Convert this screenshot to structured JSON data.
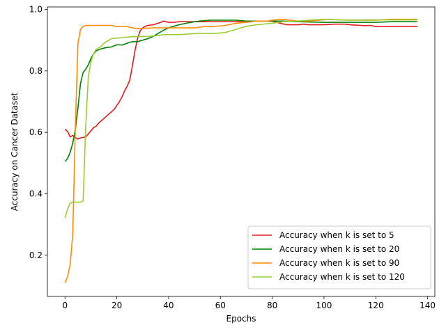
{
  "chart_data": {
    "type": "line",
    "title": "",
    "xlabel": "Epochs",
    "ylabel": "Accuracy on Cancer Dataset",
    "xlim": [
      -6.8,
      142.8
    ],
    "ylim": [
      0.066,
      1.008
    ],
    "xticks": [
      0,
      20,
      40,
      60,
      80,
      100,
      120,
      140
    ],
    "yticks": [
      0.2,
      0.4,
      0.6,
      0.8,
      1.0
    ],
    "xtick_labels": [
      "0",
      "20",
      "40",
      "60",
      "80",
      "100",
      "120",
      "140"
    ],
    "ytick_labels": [
      "0.2",
      "0.4",
      "0.6",
      "0.8",
      "1.0"
    ],
    "grid": false,
    "legend_position": "lower-right",
    "series": [
      {
        "name": "Accuracy when k is set to 5",
        "color": "#e41a1c",
        "points": [
          [
            0,
            0.61
          ],
          [
            1,
            0.603
          ],
          [
            2,
            0.585
          ],
          [
            3,
            0.59
          ],
          [
            4,
            0.583
          ],
          [
            5,
            0.578
          ],
          [
            6,
            0.582
          ],
          [
            8,
            0.585
          ],
          [
            9,
            0.595
          ],
          [
            10,
            0.605
          ],
          [
            11,
            0.615
          ],
          [
            12,
            0.62
          ],
          [
            13,
            0.63
          ],
          [
            15,
            0.645
          ],
          [
            17,
            0.66
          ],
          [
            19,
            0.675
          ],
          [
            21,
            0.7
          ],
          [
            22,
            0.715
          ],
          [
            23,
            0.735
          ],
          [
            24,
            0.75
          ],
          [
            25,
            0.77
          ],
          [
            26,
            0.815
          ],
          [
            27,
            0.865
          ],
          [
            28,
            0.905
          ],
          [
            29,
            0.93
          ],
          [
            30,
            0.94
          ],
          [
            31,
            0.945
          ],
          [
            32,
            0.948
          ],
          [
            34,
            0.95
          ],
          [
            36,
            0.955
          ],
          [
            37,
            0.958
          ],
          [
            38,
            0.962
          ],
          [
            40,
            0.958
          ],
          [
            42,
            0.958
          ],
          [
            44,
            0.96
          ],
          [
            50,
            0.96
          ],
          [
            60,
            0.96
          ],
          [
            66,
            0.96
          ],
          [
            70,
            0.962
          ],
          [
            76,
            0.962
          ],
          [
            80,
            0.962
          ],
          [
            84,
            0.953
          ],
          [
            86,
            0.95
          ],
          [
            90,
            0.95
          ],
          [
            92,
            0.952
          ],
          [
            94,
            0.95
          ],
          [
            100,
            0.95
          ],
          [
            104,
            0.952
          ],
          [
            108,
            0.952
          ],
          [
            110,
            0.95
          ],
          [
            114,
            0.948
          ],
          [
            116,
            0.947
          ],
          [
            118,
            0.948
          ],
          [
            120,
            0.944
          ],
          [
            130,
            0.944
          ],
          [
            136,
            0.944
          ]
        ]
      },
      {
        "name": "Accuracy when k is set to 20",
        "color": "#008000",
        "points": [
          [
            0,
            0.505
          ],
          [
            1,
            0.515
          ],
          [
            2,
            0.535
          ],
          [
            3,
            0.565
          ],
          [
            4,
            0.61
          ],
          [
            5,
            0.68
          ],
          [
            6,
            0.76
          ],
          [
            7,
            0.795
          ],
          [
            8,
            0.805
          ],
          [
            9,
            0.82
          ],
          [
            10,
            0.84
          ],
          [
            11,
            0.855
          ],
          [
            12,
            0.865
          ],
          [
            14,
            0.872
          ],
          [
            16,
            0.876
          ],
          [
            18,
            0.878
          ],
          [
            20,
            0.885
          ],
          [
            22,
            0.884
          ],
          [
            24,
            0.89
          ],
          [
            26,
            0.895
          ],
          [
            28,
            0.895
          ],
          [
            30,
            0.9
          ],
          [
            32,
            0.905
          ],
          [
            34,
            0.912
          ],
          [
            36,
            0.922
          ],
          [
            38,
            0.932
          ],
          [
            40,
            0.94
          ],
          [
            44,
            0.95
          ],
          [
            48,
            0.957
          ],
          [
            52,
            0.962
          ],
          [
            56,
            0.965
          ],
          [
            60,
            0.965
          ],
          [
            66,
            0.965
          ],
          [
            70,
            0.962
          ],
          [
            76,
            0.962
          ],
          [
            80,
            0.962
          ],
          [
            84,
            0.962
          ],
          [
            90,
            0.96
          ],
          [
            100,
            0.958
          ],
          [
            110,
            0.958
          ],
          [
            120,
            0.958
          ],
          [
            126,
            0.96
          ],
          [
            130,
            0.96
          ],
          [
            136,
            0.96
          ]
        ]
      },
      {
        "name": "Accuracy when k is set to 90",
        "color": "#ff8c00",
        "points": [
          [
            0,
            0.11
          ],
          [
            1,
            0.13
          ],
          [
            2,
            0.17
          ],
          [
            3,
            0.27
          ],
          [
            4,
            0.62
          ],
          [
            5,
            0.89
          ],
          [
            6,
            0.935
          ],
          [
            7,
            0.945
          ],
          [
            8,
            0.948
          ],
          [
            10,
            0.948
          ],
          [
            14,
            0.948
          ],
          [
            18,
            0.948
          ],
          [
            20,
            0.944
          ],
          [
            24,
            0.944
          ],
          [
            26,
            0.94
          ],
          [
            28,
            0.938
          ],
          [
            30,
            0.938
          ],
          [
            34,
            0.94
          ],
          [
            38,
            0.94
          ],
          [
            42,
            0.94
          ],
          [
            46,
            0.94
          ],
          [
            50,
            0.94
          ],
          [
            52,
            0.942
          ],
          [
            54,
            0.945
          ],
          [
            58,
            0.945
          ],
          [
            62,
            0.948
          ],
          [
            66,
            0.955
          ],
          [
            70,
            0.958
          ],
          [
            74,
            0.962
          ],
          [
            78,
            0.962
          ],
          [
            80,
            0.965
          ],
          [
            84,
            0.968
          ],
          [
            86,
            0.966
          ],
          [
            90,
            0.962
          ],
          [
            94,
            0.962
          ],
          [
            98,
            0.965
          ],
          [
            102,
            0.968
          ],
          [
            106,
            0.966
          ],
          [
            110,
            0.965
          ],
          [
            116,
            0.965
          ],
          [
            120,
            0.965
          ],
          [
            126,
            0.968
          ],
          [
            130,
            0.968
          ],
          [
            136,
            0.968
          ]
        ]
      },
      {
        "name": "Accuracy when k is set to 120",
        "color": "#9acd32",
        "points": [
          [
            0,
            0.322
          ],
          [
            1,
            0.35
          ],
          [
            2,
            0.37
          ],
          [
            3,
            0.373
          ],
          [
            4,
            0.373
          ],
          [
            6,
            0.373
          ],
          [
            7,
            0.377
          ],
          [
            8,
            0.62
          ],
          [
            9,
            0.78
          ],
          [
            10,
            0.83
          ],
          [
            11,
            0.855
          ],
          [
            12,
            0.87
          ],
          [
            14,
            0.88
          ],
          [
            15,
            0.89
          ],
          [
            17,
            0.9
          ],
          [
            18,
            0.905
          ],
          [
            22,
            0.908
          ],
          [
            24,
            0.91
          ],
          [
            28,
            0.912
          ],
          [
            32,
            0.912
          ],
          [
            36,
            0.915
          ],
          [
            38,
            0.918
          ],
          [
            44,
            0.918
          ],
          [
            48,
            0.92
          ],
          [
            52,
            0.922
          ],
          [
            58,
            0.922
          ],
          [
            62,
            0.925
          ],
          [
            66,
            0.935
          ],
          [
            70,
            0.945
          ],
          [
            74,
            0.95
          ],
          [
            80,
            0.955
          ],
          [
            84,
            0.96
          ],
          [
            90,
            0.962
          ],
          [
            96,
            0.966
          ],
          [
            100,
            0.968
          ],
          [
            106,
            0.966
          ],
          [
            110,
            0.965
          ],
          [
            116,
            0.966
          ],
          [
            120,
            0.966
          ],
          [
            130,
            0.966
          ],
          [
            136,
            0.966
          ]
        ]
      }
    ]
  }
}
